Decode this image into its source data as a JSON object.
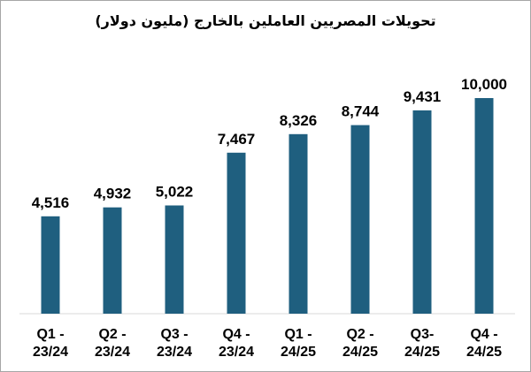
{
  "chart_data": {
    "type": "bar",
    "title": "تحويلات المصريين العاملين بالخارج (مليون دولار)",
    "xlabel": "",
    "ylabel": "",
    "categories": [
      [
        "Q1 -",
        "23/24"
      ],
      [
        "Q2 -",
        "23/24"
      ],
      [
        "Q3 -",
        "23/24"
      ],
      [
        "Q4 -",
        "23/24"
      ],
      [
        "Q1 -",
        "24/25"
      ],
      [
        "Q2 -",
        "24/25"
      ],
      [
        "Q3-",
        "24/25"
      ],
      [
        "Q4 -",
        "24/25"
      ]
    ],
    "values": [
      4516,
      4932,
      5022,
      7467,
      8326,
      8744,
      9431,
      10000
    ],
    "value_labels": [
      "4,516",
      "4,932",
      "5,022",
      "7,467",
      "8,326",
      "8,744",
      "9,431",
      "10,000"
    ],
    "ylim": [
      0,
      10000
    ],
    "grid": false,
    "legend": "none",
    "bar_color": "#1f5f7f"
  }
}
